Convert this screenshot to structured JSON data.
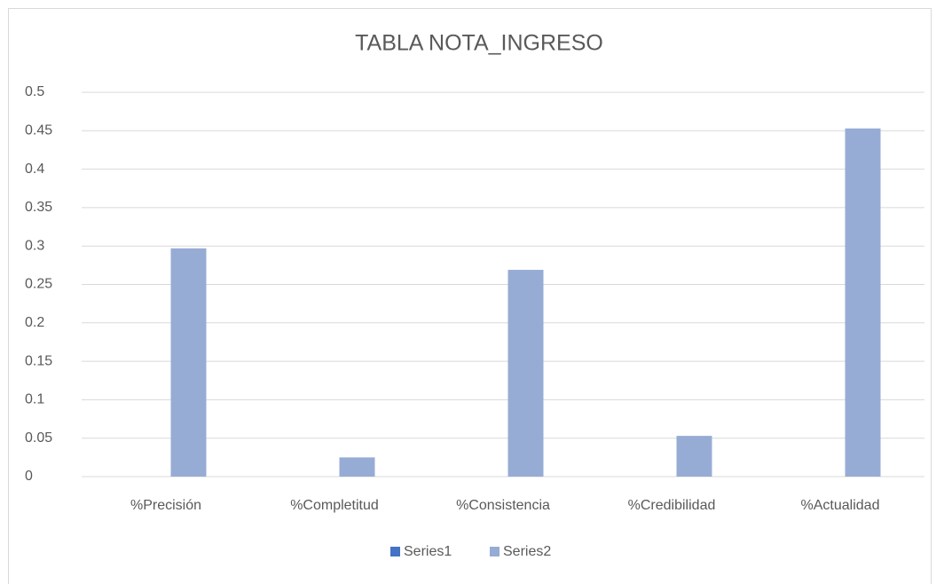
{
  "chart_data": {
    "type": "bar",
    "title": "TABLA NOTA_INGRESO",
    "categories": [
      "%Precisión",
      "%Completitud",
      "%Consistencia",
      "%Credibilidad",
      "%Actualidad"
    ],
    "series": [
      {
        "name": "Series1",
        "color": "#4472c4",
        "values": [
          0,
          0,
          0,
          0,
          0
        ]
      },
      {
        "name": "Series2",
        "color": "#97acd4",
        "values": [
          0.297,
          0.025,
          0.269,
          0.053,
          0.453
        ]
      }
    ],
    "ylim": [
      0,
      0.5
    ],
    "yticks": [
      0,
      0.05,
      0.1,
      0.15,
      0.2,
      0.25,
      0.3,
      0.35,
      0.4,
      0.45,
      0.5
    ],
    "grid": true,
    "legend": "bottom"
  }
}
